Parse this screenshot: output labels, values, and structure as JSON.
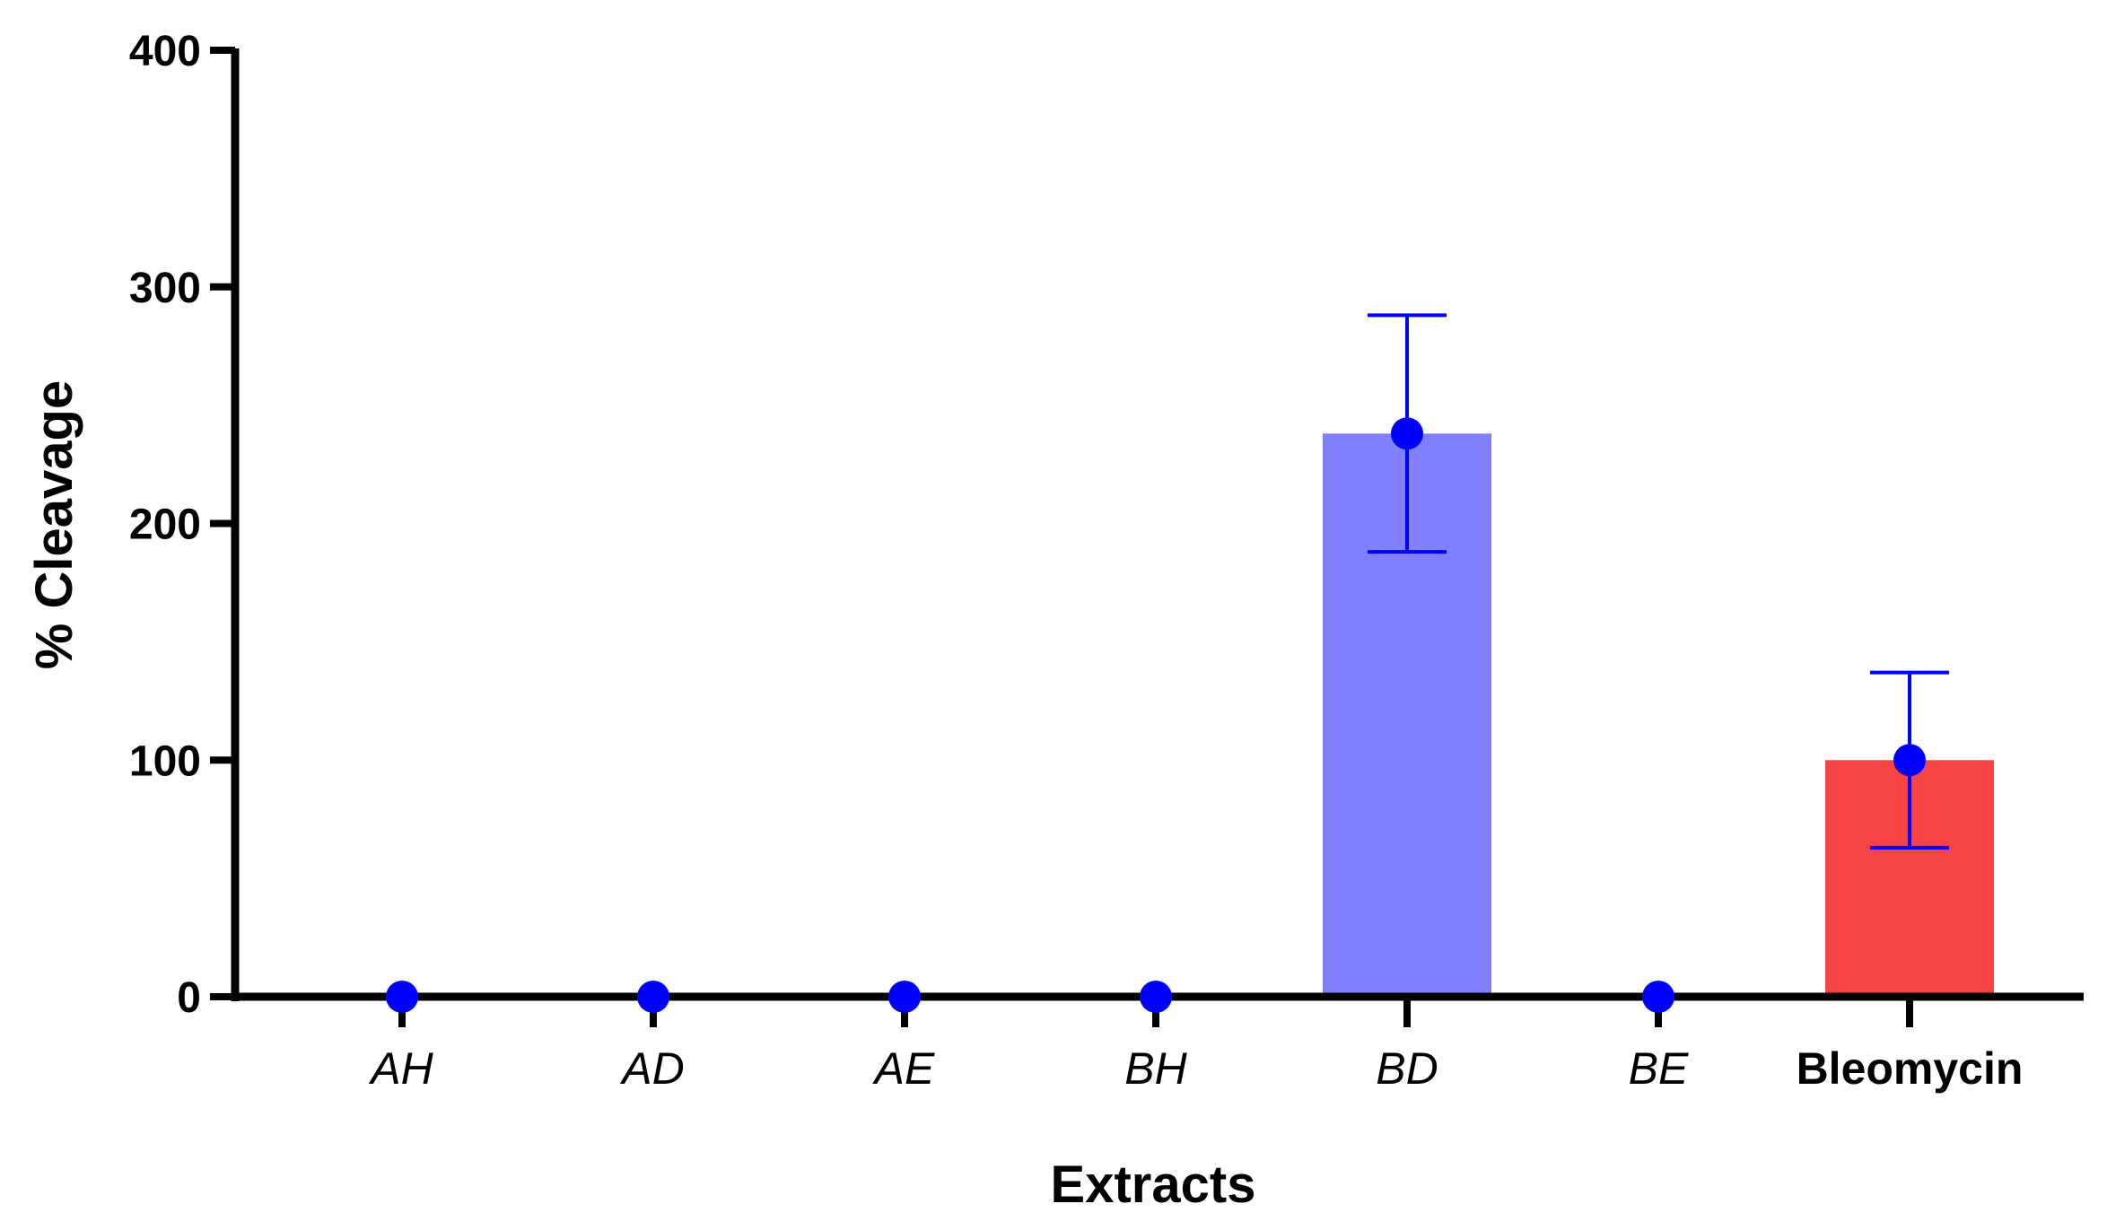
{
  "chart_data": {
    "type": "bar",
    "xlabel": "Extracts",
    "ylabel": "% Cleavage",
    "ylim": [
      0,
      400
    ],
    "yticks": [
      0,
      100,
      200,
      300,
      400
    ],
    "grid": false,
    "categories": [
      {
        "label": "AH",
        "value": 0,
        "err_low": 0,
        "err_high": 0,
        "bar_color": "",
        "italic": true
      },
      {
        "label": "AD",
        "value": 0,
        "err_low": 0,
        "err_high": 0,
        "bar_color": "",
        "italic": true
      },
      {
        "label": "AE",
        "value": 0,
        "err_low": 0,
        "err_high": 0,
        "bar_color": "",
        "italic": true
      },
      {
        "label": "BH",
        "value": 0,
        "err_low": 0,
        "err_high": 0,
        "bar_color": "",
        "italic": true
      },
      {
        "label": "BD",
        "value": 238,
        "err_low": 188,
        "err_high": 288,
        "bar_color": "#8080ff",
        "italic": true
      },
      {
        "label": "BE",
        "value": 0,
        "err_low": 0,
        "err_high": 0,
        "bar_color": "",
        "italic": true
      },
      {
        "label": "Bleomycin",
        "value": 100,
        "err_low": 63,
        "err_high": 137,
        "bar_color": "#f84444",
        "italic": false
      }
    ],
    "colors": {
      "point": "#0000ff",
      "error_bar": "#0000ff",
      "axis": "#000000"
    }
  }
}
